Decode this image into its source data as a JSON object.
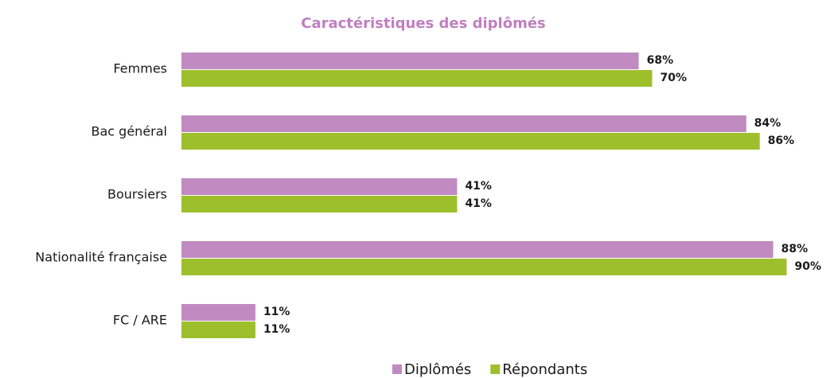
{
  "chart_data": {
    "type": "hbar",
    "title": "Caractéristiques des diplômés",
    "categories": [
      "Femmes",
      "Bac général",
      "Boursiers",
      "Nationalité française",
      "FC / ARE"
    ],
    "series": [
      {
        "name": "Diplômés",
        "color": "#c08bc0",
        "values": [
          68,
          84,
          41,
          88,
          11
        ],
        "value_labels": [
          "68%",
          "84%",
          "41%",
          "88%",
          "11%"
        ]
      },
      {
        "name": "Répondants",
        "color": "#9dbf2c",
        "values": [
          70,
          86,
          41,
          90,
          11
        ],
        "value_labels": [
          "70%",
          "86%",
          "41%",
          "90%",
          "11%"
        ]
      }
    ],
    "xlim": [
      0,
      100
    ],
    "legend": "bottom"
  }
}
